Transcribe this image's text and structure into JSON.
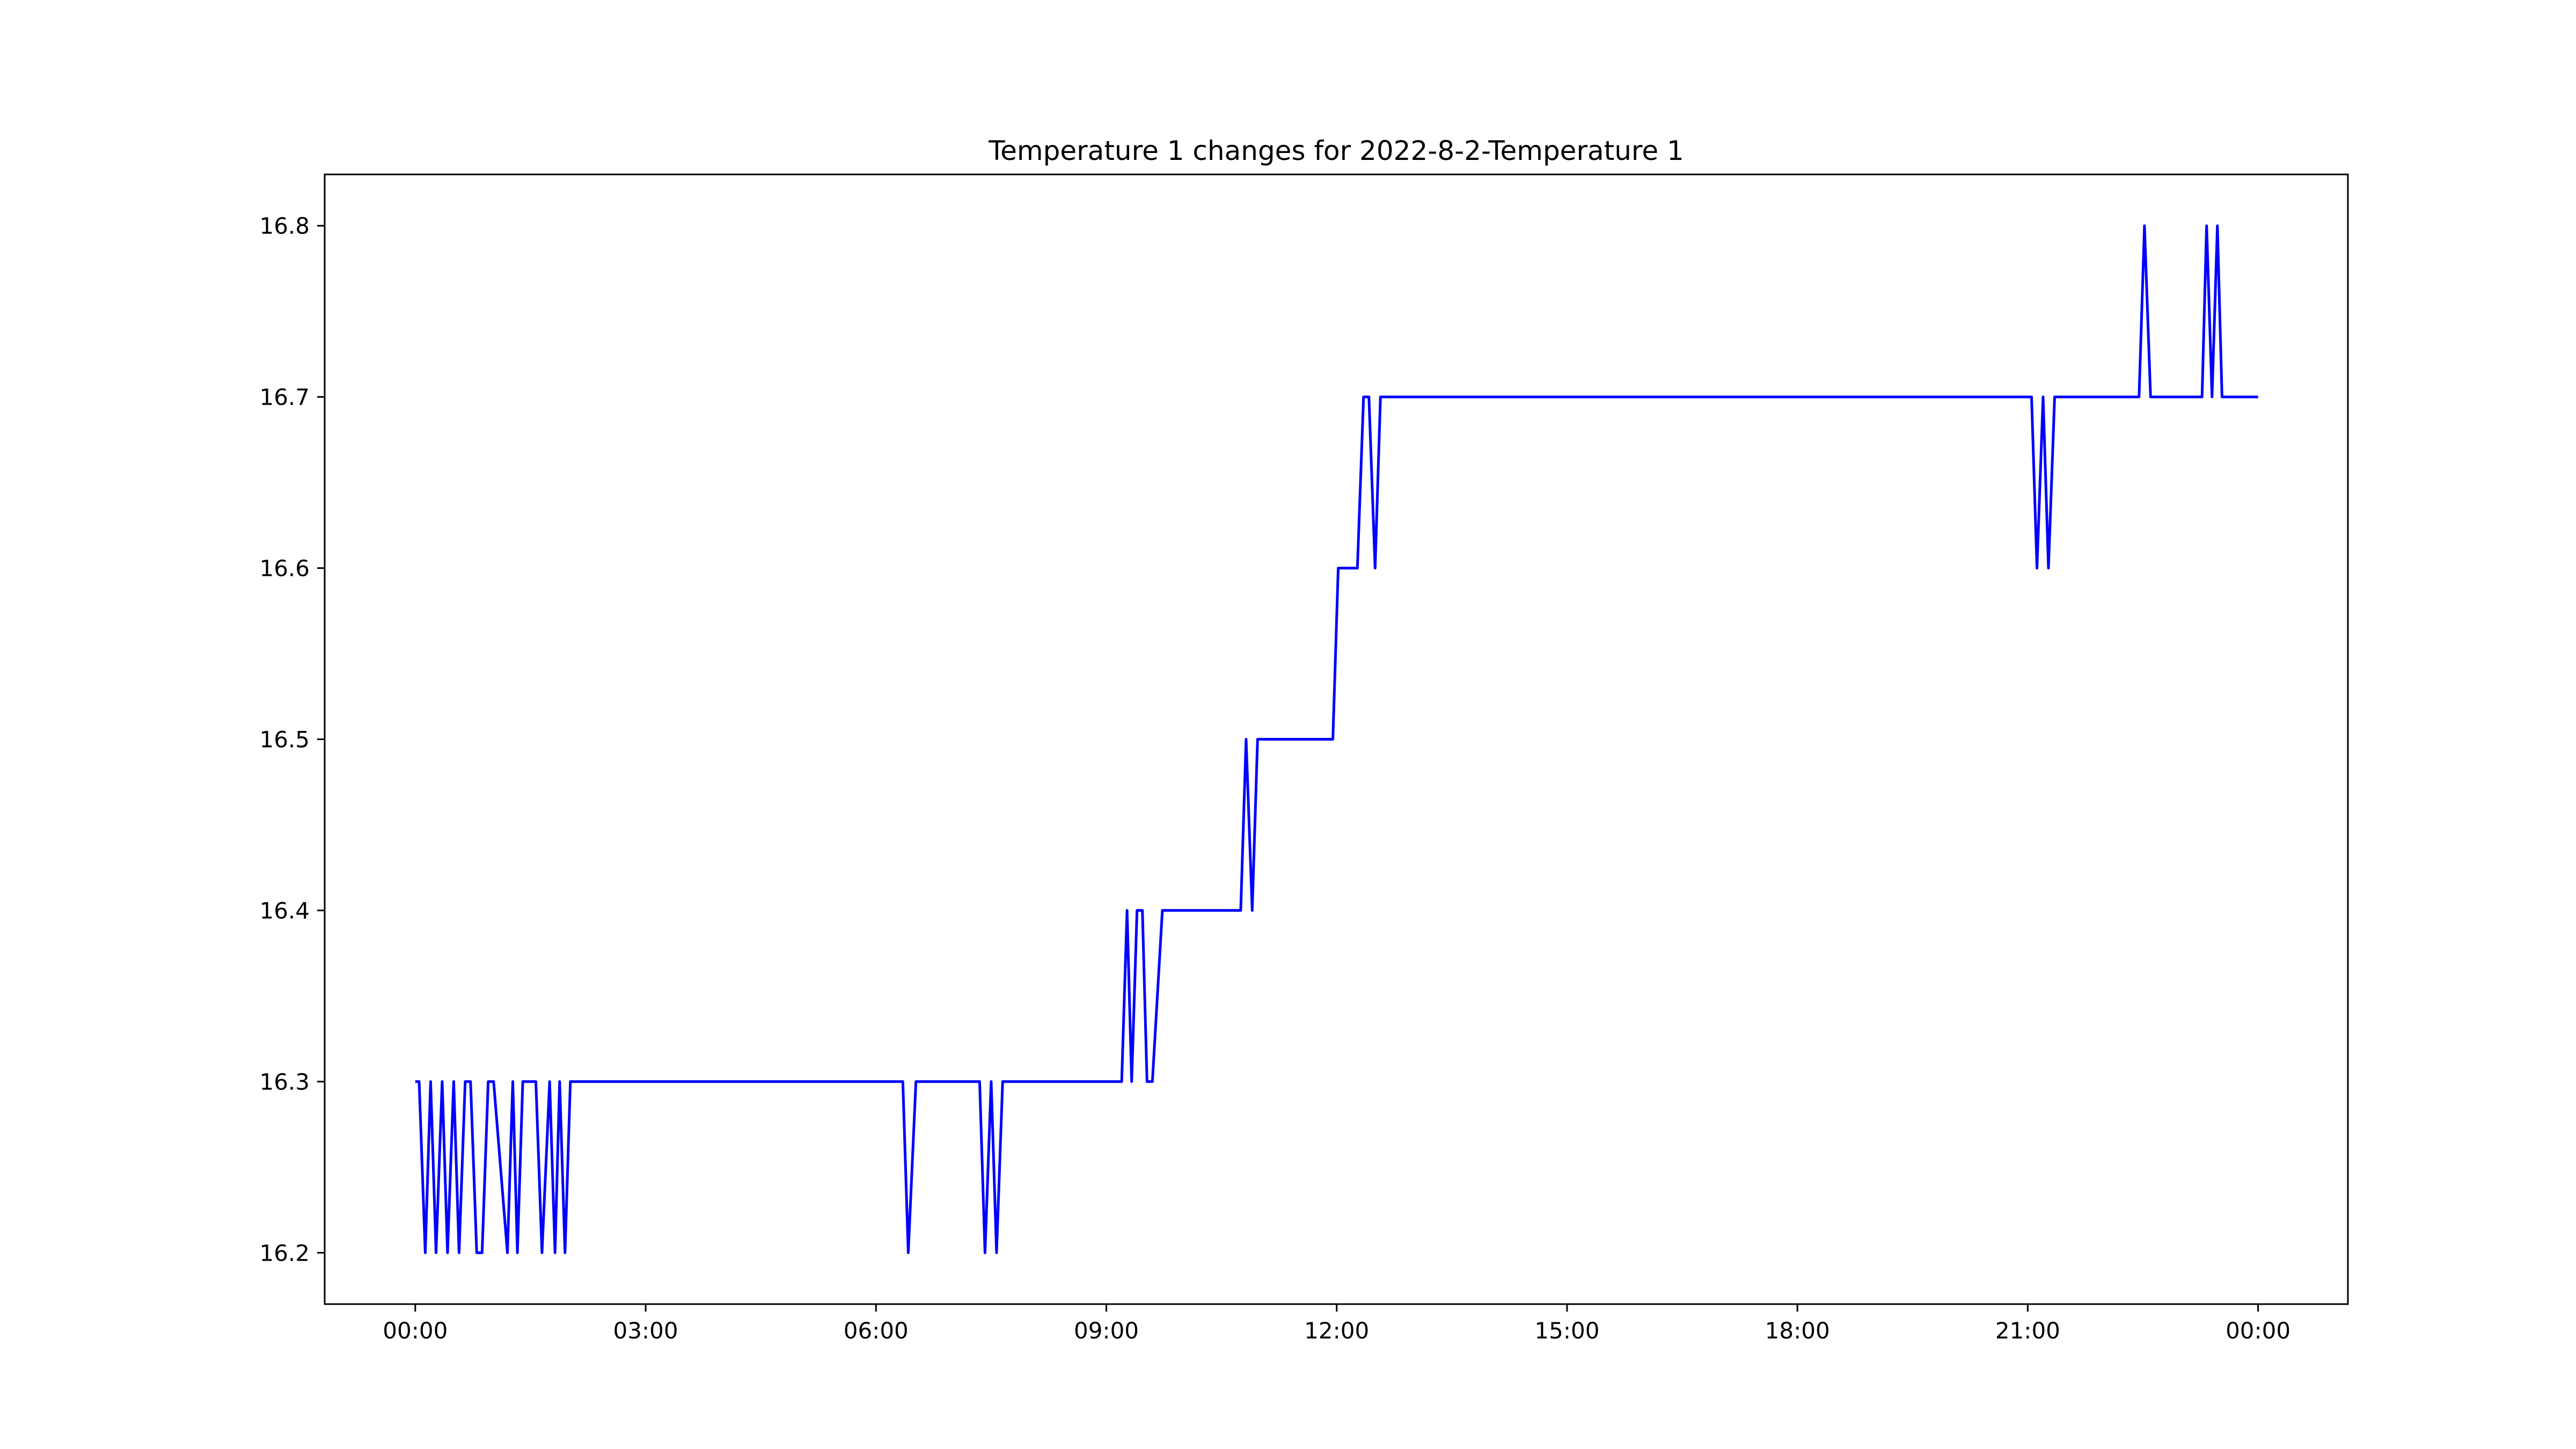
{
  "chart_data": {
    "type": "line",
    "title": "Temperature 1 changes for 2022-8-2-Temperature 1",
    "xlabel": "",
    "ylabel": "",
    "x_unit": "hours since 2022-08-02 00:00",
    "xlim": [
      -1.18,
      25.17
    ],
    "ylim": [
      16.17,
      16.83
    ],
    "grid": false,
    "legend": "none",
    "x_ticks": [
      {
        "value": 0,
        "label": "00:00"
      },
      {
        "value": 3,
        "label": "03:00"
      },
      {
        "value": 6,
        "label": "06:00"
      },
      {
        "value": 9,
        "label": "09:00"
      },
      {
        "value": 12,
        "label": "12:00"
      },
      {
        "value": 15,
        "label": "15:00"
      },
      {
        "value": 18,
        "label": "18:00"
      },
      {
        "value": 21,
        "label": "21:00"
      },
      {
        "value": 24,
        "label": "00:00"
      }
    ],
    "y_ticks": [
      {
        "value": 16.2,
        "label": "16.2"
      },
      {
        "value": 16.3,
        "label": "16.3"
      },
      {
        "value": 16.4,
        "label": "16.4"
      },
      {
        "value": 16.5,
        "label": "16.5"
      },
      {
        "value": 16.6,
        "label": "16.6"
      },
      {
        "value": 16.7,
        "label": "16.7"
      },
      {
        "value": 16.8,
        "label": "16.8"
      }
    ],
    "series": [
      {
        "color": "#0000ff",
        "x": [
          0.0,
          0.05,
          0.13,
          0.2,
          0.27,
          0.35,
          0.42,
          0.5,
          0.57,
          0.65,
          0.72,
          0.8,
          0.87,
          0.95,
          1.02,
          1.2,
          1.27,
          1.33,
          1.4,
          1.5,
          1.57,
          1.65,
          1.75,
          1.82,
          1.88,
          1.95,
          2.02,
          2.1,
          6.35,
          6.42,
          6.52,
          7.35,
          7.42,
          7.5,
          7.57,
          7.65,
          9.2,
          9.27,
          9.33,
          9.4,
          9.47,
          9.53,
          9.6,
          9.73,
          9.8,
          10.75,
          10.82,
          10.9,
          10.97,
          11.95,
          12.02,
          12.27,
          12.35,
          12.42,
          12.5,
          12.57,
          21.05,
          21.12,
          21.2,
          21.27,
          21.35,
          21.42,
          22.45,
          22.52,
          22.6,
          23.27,
          23.33,
          23.4,
          23.47,
          23.53,
          24.0
        ],
        "y": [
          16.3,
          16.3,
          16.2,
          16.3,
          16.2,
          16.3,
          16.2,
          16.3,
          16.2,
          16.3,
          16.3,
          16.2,
          16.2,
          16.3,
          16.3,
          16.2,
          16.3,
          16.2,
          16.3,
          16.3,
          16.3,
          16.2,
          16.3,
          16.2,
          16.3,
          16.2,
          16.3,
          16.3,
          16.3,
          16.2,
          16.3,
          16.3,
          16.2,
          16.3,
          16.2,
          16.3,
          16.3,
          16.4,
          16.3,
          16.4,
          16.4,
          16.3,
          16.3,
          16.4,
          16.4,
          16.4,
          16.5,
          16.4,
          16.5,
          16.5,
          16.6,
          16.6,
          16.7,
          16.7,
          16.6,
          16.7,
          16.7,
          16.6,
          16.7,
          16.6,
          16.7,
          16.7,
          16.7,
          16.8,
          16.7,
          16.7,
          16.8,
          16.7,
          16.8,
          16.7,
          16.7
        ]
      }
    ]
  }
}
